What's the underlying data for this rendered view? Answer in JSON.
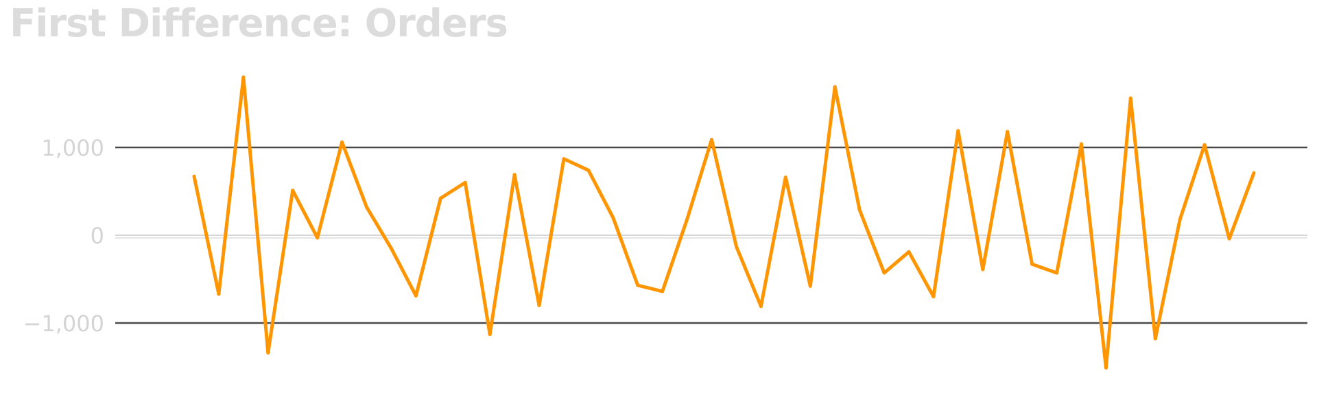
{
  "chart_data": {
    "type": "line",
    "title": "First Difference: Orders",
    "xlabel": "",
    "ylabel": "",
    "ylim": [
      -1550,
      1850
    ],
    "y_ticks": [
      {
        "value": 1000,
        "label": "1,000"
      },
      {
        "value": 0,
        "label": "0"
      },
      {
        "value": -1000,
        "label": "−1,000"
      }
    ],
    "grid": "major y lines at ticks",
    "legend": "none",
    "series": [
      {
        "color": "#ff9500",
        "values": [
          670,
          -670,
          1800,
          -1340,
          510,
          -30,
          1060,
          320,
          -150,
          -690,
          420,
          600,
          -1130,
          690,
          -800,
          870,
          740,
          200,
          -570,
          -640,
          180,
          1090,
          -130,
          -810,
          660,
          -580,
          1690,
          290,
          -430,
          -190,
          -700,
          1190,
          -390,
          1180,
          -330,
          -430,
          1040,
          -1510,
          1560,
          -1180,
          180,
          1030,
          -40,
          710
        ]
      }
    ],
    "colors": {
      "line": "#ff9500",
      "grid_major": "#4a4a4a",
      "grid_zero": "#d6d6d6",
      "text": "#d4d4d4"
    }
  }
}
